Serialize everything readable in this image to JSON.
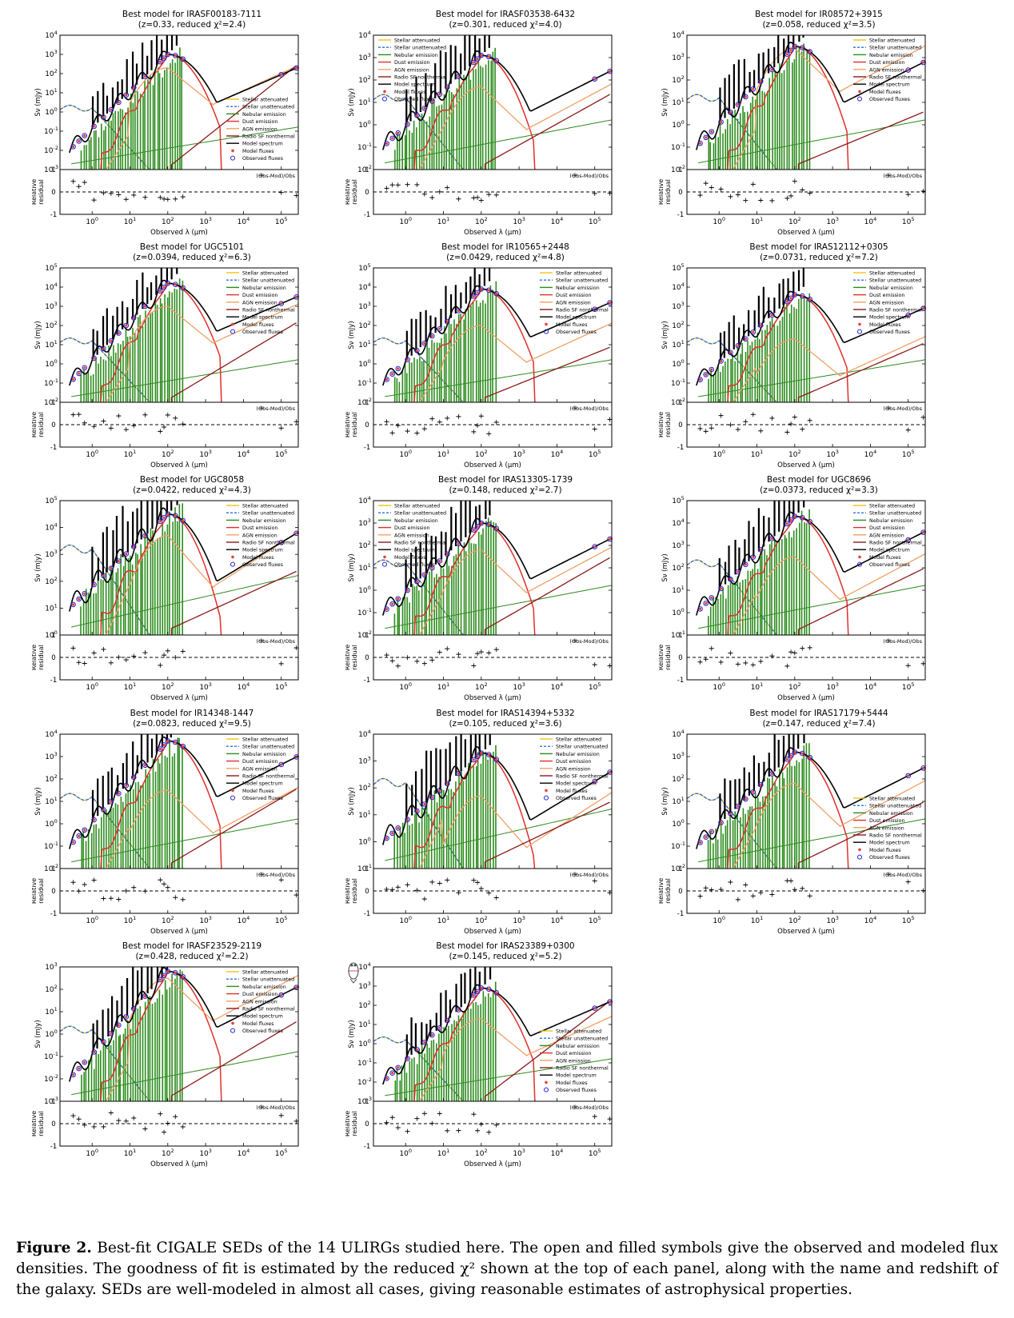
{
  "figure": {
    "caption_label": "Figure 2.",
    "caption_text": " Best-fit CIGALE SEDs of the 14 ULIRGs studied here. The open and filled symbols give the observed and modeled flux densities. The goodness of fit is estimated by the reduced χ² shown at the top of each panel, along with the name and redshift of the galaxy. SEDs are well-modeled in almost all cases, giving reasonable estimates of astrophysical properties.",
    "logo_text": "CIGALE"
  },
  "axis_labels": {
    "ylabel": "Sν (mJy)",
    "residual_ylabel_1": "Relative",
    "residual_ylabel_2": "residual",
    "xlabel": "Observed λ (μm)",
    "residual_legend": "(Obs-Mod)/Obs"
  },
  "legend_entries": [
    {
      "label": "Stellar attenuated",
      "color": "#f2c218",
      "style": "solid"
    },
    {
      "label": "Stellar unattenuated",
      "color": "#2f6fd8",
      "style": "dashed"
    },
    {
      "label": "Nebular emission",
      "color": "#2d8c1e",
      "style": "solid"
    },
    {
      "label": "Dust emission",
      "color": "#e0302a",
      "style": "solid"
    },
    {
      "label": "AGN emission",
      "color": "#f0a066",
      "style": "solid"
    },
    {
      "label": "Radio SF nonthermal",
      "color": "#8b1a1a",
      "style": "solid"
    },
    {
      "label": "Model spectrum",
      "color": "#000000",
      "style": "solid"
    },
    {
      "label": "Model fluxes",
      "color": "#e8403a",
      "style": "dot"
    },
    {
      "label": "Observed fluxes",
      "color": "#2222cc",
      "style": "circle"
    }
  ],
  "chart_data": [
    {
      "type": "line",
      "title": "Best model for IRASF00183-7111",
      "subtitle": "(z=0.33, reduced χ²=2.4)",
      "ylim_exp": [
        -3,
        4
      ],
      "peak_exp": 3.0,
      "radio_exp": 2.5,
      "agn_exp": 2.3,
      "legend_pos": "lower-right"
    },
    {
      "type": "line",
      "title": "Best model for IRASF03538-6432",
      "subtitle": "(z=0.301, reduced χ²=4.0)",
      "ylim_exp": [
        -2,
        4
      ],
      "peak_exp": 3.1,
      "radio_exp": 1.4,
      "agn_exp": 1.7,
      "legend_pos": "upper-left"
    },
    {
      "type": "line",
      "title": "Best model for IR08572+3915",
      "subtitle": "(z=0.058, reduced χ²=3.5)",
      "ylim_exp": [
        -2,
        4
      ],
      "peak_exp": 3.5,
      "radio_exp": 0.6,
      "agn_exp": 3.4,
      "legend_pos": "upper-right"
    },
    {
      "type": "line",
      "title": "Best model for UGC5101",
      "subtitle": "(z=0.0394, reduced χ²=6.3)",
      "ylim_exp": [
        -2,
        5
      ],
      "peak_exp": 4.2,
      "radio_exp": 2.2,
      "agn_exp": 3.0,
      "legend_pos": "upper-right"
    },
    {
      "type": "line",
      "title": "Best model for IR10565+2448",
      "subtitle": "(z=0.0429, reduced χ²=4.8)",
      "ylim_exp": [
        -2,
        5
      ],
      "peak_exp": 3.9,
      "radio_exp": 0.9,
      "agn_exp": 2.0,
      "legend_pos": "upper-right"
    },
    {
      "type": "line",
      "title": "Best model for IRAS12112+0305",
      "subtitle": "(z=0.0731, reduced χ²=7.2)",
      "ylim_exp": [
        -2,
        5
      ],
      "peak_exp": 3.6,
      "radio_exp": 1.1,
      "agn_exp": 1.3,
      "legend_pos": "upper-right"
    },
    {
      "type": "line",
      "title": "Best model for UGC8058",
      "subtitle": "(z=0.0422, reduced χ²=4.3)",
      "ylim_exp": [
        0,
        5
      ],
      "peak_exp": 4.5,
      "radio_exp": 2.4,
      "agn_exp": 3.7,
      "legend_pos": "upper-right"
    },
    {
      "type": "line",
      "title": "Best model for IRAS13305-1739",
      "subtitle": "(z=0.148, reduced χ²=2.7)",
      "ylim_exp": [
        -2,
        4
      ],
      "peak_exp": 3.0,
      "radio_exp": 1.5,
      "agn_exp": 1.8,
      "legend_pos": "upper-left"
    },
    {
      "type": "line",
      "title": "Best model for UGC8696",
      "subtitle": "(z=0.0373, reduced χ²=3.3)",
      "ylim_exp": [
        -1,
        5
      ],
      "peak_exp": 4.3,
      "radio_exp": 2.0,
      "agn_exp": 2.5,
      "legend_pos": "upper-right"
    },
    {
      "type": "line",
      "title": "Best model for IR14348-1447",
      "subtitle": "(z=0.0823, reduced χ²=9.5)",
      "ylim_exp": [
        -2,
        4
      ],
      "peak_exp": 3.7,
      "radio_exp": 1.6,
      "agn_exp": 1.5,
      "legend_pos": "upper-right"
    },
    {
      "type": "line",
      "title": "Best model for IRAS14394+5332",
      "subtitle": "(z=0.105, reduced χ²=3.6)",
      "ylim_exp": [
        -1,
        4
      ],
      "peak_exp": 3.3,
      "radio_exp": 1.5,
      "agn_exp": 1.7,
      "legend_pos": "upper-right"
    },
    {
      "type": "line",
      "title": "Best model for IRAS17179+5444",
      "subtitle": "(z=0.147, reduced χ²=7.4)",
      "ylim_exp": [
        -2,
        4
      ],
      "peak_exp": 3.2,
      "radio_exp": 1.0,
      "agn_exp": 1.8,
      "legend_pos": "lower-right"
    },
    {
      "type": "line",
      "title": "Best model for IRASF23529-2119",
      "subtitle": "(z=0.428, reduced χ²=2.2)",
      "ylim_exp": [
        -3,
        3
      ],
      "peak_exp": 2.8,
      "radio_exp": 0.6,
      "agn_exp": 2.5,
      "legend_pos": "upper-right"
    },
    {
      "type": "line",
      "title": "Best model for IRAS23389+0300",
      "subtitle": "(z=0.145, reduced χ²=5.2)",
      "ylim_exp": [
        -3,
        4
      ],
      "peak_exp": 2.9,
      "radio_exp": 2.3,
      "agn_exp": 1.3,
      "legend_pos": "lower-right"
    }
  ]
}
